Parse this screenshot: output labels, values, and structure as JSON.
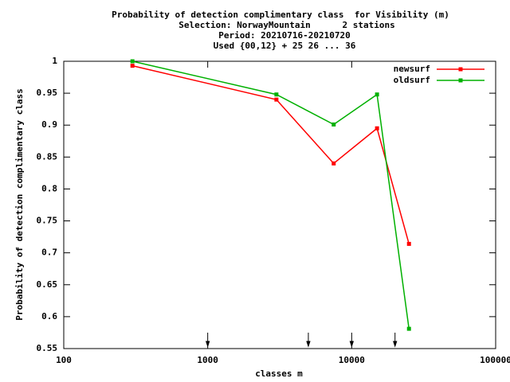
{
  "chart_data": {
    "type": "line",
    "title": "Probability of detection complimentary class  for Visibility (m)",
    "subtitle": [
      "Selection: NorwayMountain      2 stations",
      "Period: 20210716-20210720",
      "Used {00,12} + 25 26 ... 36"
    ],
    "x_label": "classes m",
    "y_label": "Probability of detection complimentary class",
    "x": [
      300,
      3000,
      7500,
      15000,
      25000
    ],
    "series": [
      {
        "name": "newsurf",
        "color": "#ff0000",
        "values": [
          0.993,
          0.94,
          0.84,
          0.895,
          0.714
        ]
      },
      {
        "name": "oldsurf",
        "color": "#00b000",
        "values": [
          1.0,
          0.948,
          0.901,
          0.948,
          0.581
        ]
      }
    ],
    "x_log": true,
    "xlim": [
      100,
      100000
    ],
    "xticks": [
      100,
      1000,
      10000,
      100000
    ],
    "ylim": [
      0.55,
      1
    ],
    "yticks": [
      0.55,
      0.6,
      0.65,
      0.7,
      0.75,
      0.8,
      0.85,
      0.9,
      0.95,
      1
    ],
    "markers": [
      1000,
      5000,
      10000,
      20000
    ],
    "legend": "top-right"
  }
}
